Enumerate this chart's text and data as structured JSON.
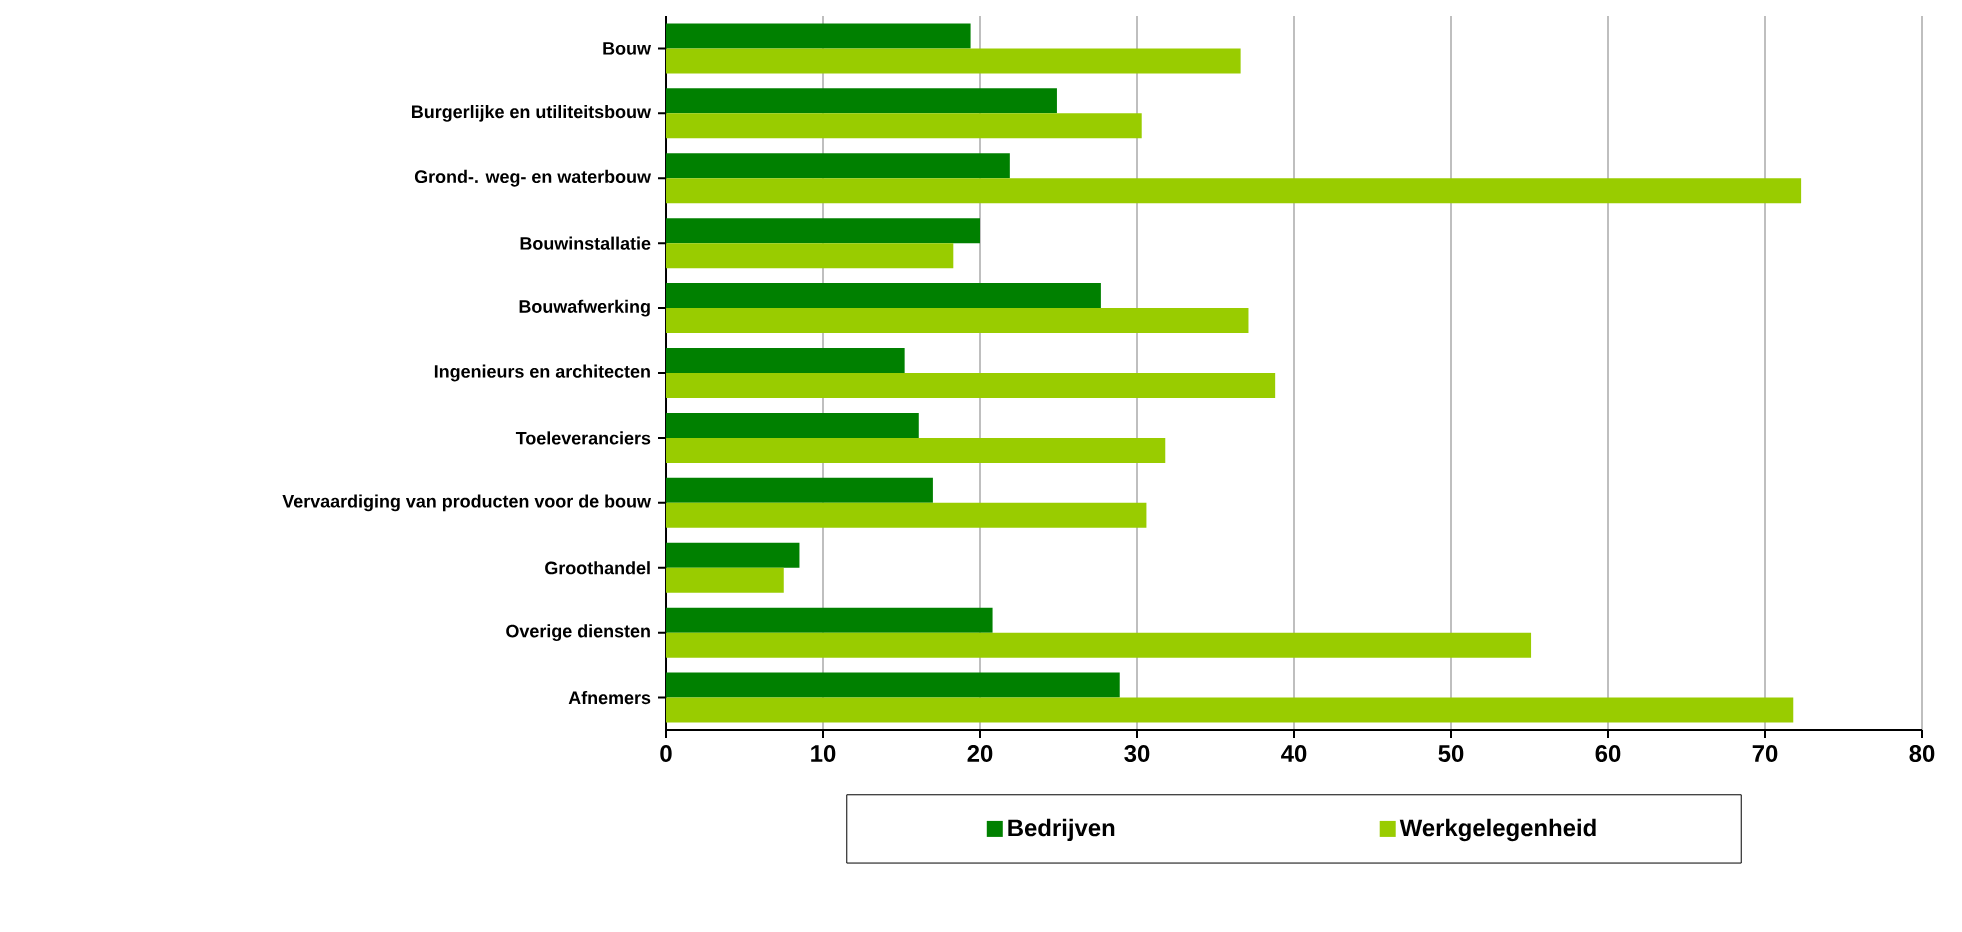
{
  "chart_data": {
    "type": "bar",
    "orientation": "horizontal",
    "categories": [
      "Bouw",
      "Burgerlijke en utiliteitsbouw",
      "Grond-. weg- en waterbouw",
      "Bouwinstallatie",
      "Bouwafwerking",
      "Ingenieurs en architecten",
      "Toeleveranciers",
      "Vervaardiging van producten voor de bouw",
      "Groothandel",
      "Overige diensten",
      "Afnemers"
    ],
    "series": [
      {
        "name": "Bedrijven",
        "color": "#008000",
        "values": [
          19.4,
          24.9,
          21.9,
          20.0,
          27.7,
          15.2,
          16.1,
          17.0,
          8.5,
          20.8,
          28.9
        ]
      },
      {
        "name": "Werkgelegenheid",
        "color": "#99cc00",
        "values": [
          36.6,
          30.3,
          72.3,
          18.3,
          37.1,
          38.8,
          31.8,
          30.6,
          7.5,
          55.1,
          71.8
        ]
      }
    ],
    "xlim": [
      0,
      80
    ],
    "xticks": [
      0,
      10,
      20,
      30,
      40,
      50,
      60,
      70,
      80
    ],
    "grid": "x",
    "legend": "bottom"
  }
}
